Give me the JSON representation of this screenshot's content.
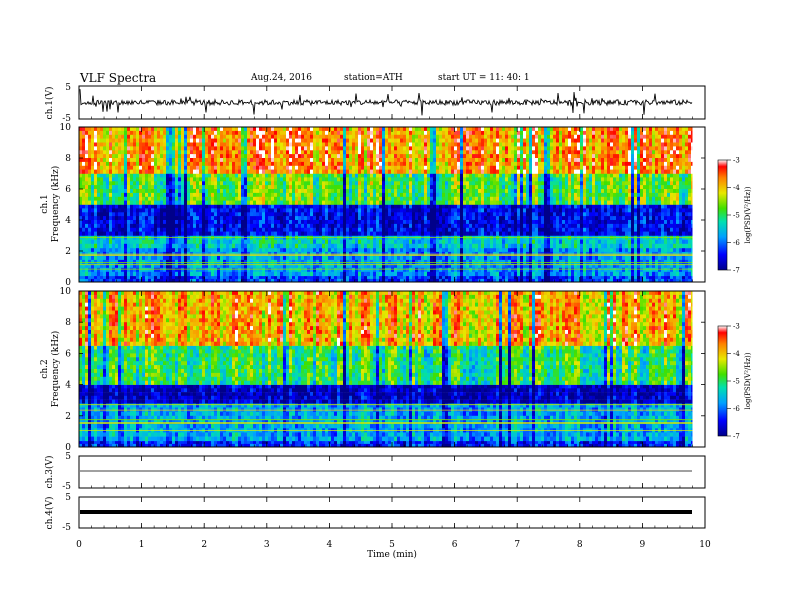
{
  "header": {
    "title": "VLF  Spectra",
    "date": "Aug.24, 2016",
    "station": "station=ATH",
    "start": "start  UT  =   11: 40: 1"
  },
  "chart_data": [
    {
      "type": "line",
      "ylabel": "ch.1(V)",
      "ylim": [
        -5,
        5
      ],
      "yticks": [
        "5",
        "-5"
      ],
      "note": "dense noisy waveform around 0 V"
    },
    {
      "type": "heatmap",
      "ylabel_channel": "ch.1",
      "ylabel": "Frequency  (kHz)",
      "ylim": [
        0,
        10
      ],
      "yticks": [
        "0",
        "2",
        "4",
        "6",
        "8",
        "10"
      ],
      "colorbar": {
        "label": "log(PSD(V²/Hz))",
        "range": [
          -7,
          -3
        ],
        "ticks": [
          "-3",
          "-4",
          "-5",
          "-6",
          "-7"
        ]
      },
      "bands_khz": [
        {
          "range": [
            0,
            0.4
          ],
          "log_psd": -6.2
        },
        {
          "range": [
            0.4,
            2.2
          ],
          "log_psd": -5.8
        },
        {
          "range": [
            2.2,
            3.0
          ],
          "log_psd": -5.4
        },
        {
          "range": [
            3.0,
            5.0
          ],
          "log_psd": -6.5
        },
        {
          "range": [
            5.0,
            7.0
          ],
          "log_psd": -4.8
        },
        {
          "range": [
            7.0,
            10.0
          ],
          "log_psd": -3.7
        }
      ]
    },
    {
      "type": "heatmap",
      "ylabel_channel": "ch.2",
      "ylabel": "Frequency  (kHz)",
      "ylim": [
        0,
        10
      ],
      "yticks": [
        "0",
        "2",
        "4",
        "6",
        "8",
        "10"
      ],
      "colorbar": {
        "label": "log(PSD(V²/Hz))",
        "range": [
          -7,
          -3
        ],
        "ticks": [
          "-3",
          "-4",
          "-5",
          "-6",
          "-7"
        ]
      },
      "bands_khz": [
        {
          "range": [
            0,
            0.4
          ],
          "log_psd": -6.3
        },
        {
          "range": [
            0.4,
            2.8
          ],
          "log_psd": -5.7
        },
        {
          "range": [
            2.8,
            4.0
          ],
          "log_psd": -6.7
        },
        {
          "range": [
            4.0,
            6.5
          ],
          "log_psd": -5.0
        },
        {
          "range": [
            6.5,
            10.0
          ],
          "log_psd": -3.9
        }
      ]
    },
    {
      "type": "line",
      "ylabel": "ch.3(V)",
      "ylim": [
        -5,
        5
      ],
      "yticks": [
        "5",
        "-5"
      ],
      "note": "flat line near 0 V"
    },
    {
      "type": "line",
      "ylabel": "ch.4(V)",
      "ylim": [
        -5,
        5
      ],
      "yticks": [
        "5",
        "-5"
      ],
      "note": "thick flat line near 0 V"
    }
  ],
  "xaxis": {
    "label": "Time  (min)",
    "xlim": [
      0,
      10
    ],
    "ticks": [
      "0",
      "1",
      "2",
      "3",
      "4",
      "5",
      "6",
      "7",
      "8",
      "9",
      "10"
    ],
    "data_end_min": 9.8
  }
}
